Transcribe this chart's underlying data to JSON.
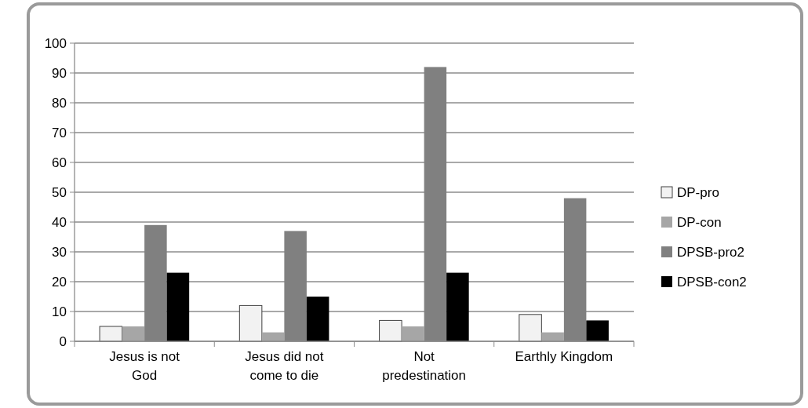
{
  "chart_data": {
    "type": "bar",
    "categories": [
      "Jesus is not God",
      "Jesus did not come to die",
      "Not predestination",
      "Earthly Kingdom"
    ],
    "series": [
      {
        "name": "DP-pro",
        "color": "#f2f2f2",
        "values": [
          5,
          12,
          7,
          9
        ]
      },
      {
        "name": "DP-con",
        "color": "#a6a6a6",
        "values": [
          5,
          3,
          5,
          3
        ]
      },
      {
        "name": "DPSB-pro2",
        "color": "#808080",
        "values": [
          39,
          37,
          92,
          48
        ]
      },
      {
        "name": "DPSB-con2",
        "color": "#000000",
        "values": [
          23,
          15,
          23,
          7
        ]
      }
    ],
    "ylim": [
      0,
      100
    ],
    "yticks": [
      0,
      10,
      20,
      30,
      40,
      50,
      60,
      70,
      80,
      90,
      100
    ],
    "grid": "y",
    "legend": "right"
  }
}
